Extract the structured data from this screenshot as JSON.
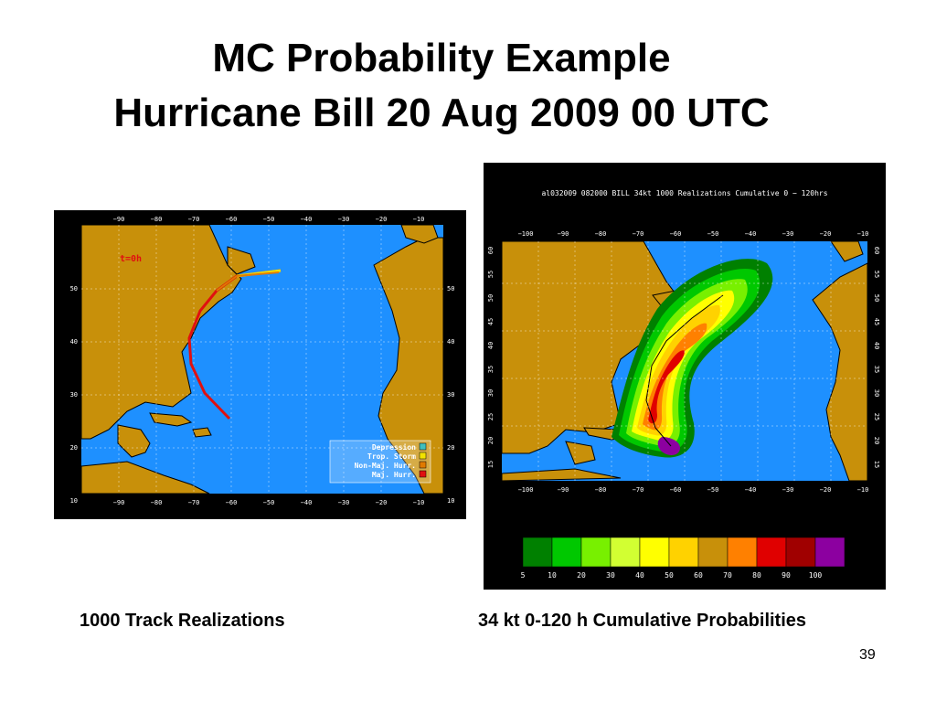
{
  "slide": {
    "title_line1": "MC Probability Example",
    "title_line2": "Hurricane Bill 20 Aug 2009 00 UTC",
    "caption_left": "1000 Track Realizations",
    "caption_right": "34 kt 0-120 h Cumulative Probabilities",
    "slide_number": "39"
  },
  "left_map": {
    "time_label": "t=0h",
    "lon_ticks": [
      "−90",
      "−80",
      "−70",
      "−60",
      "−50",
      "−40",
      "−30",
      "−20",
      "−10"
    ],
    "lat_ticks": [
      "50",
      "40",
      "30",
      "20",
      "10"
    ],
    "legend": [
      {
        "label": "Depression",
        "color": "#3fbfbf"
      },
      {
        "label": "Trop. Storm",
        "color": "#f2e200"
      },
      {
        "label": "Non-Maj. Hurr.",
        "color": "#e07a00"
      },
      {
        "label": "Maj. Hurr.",
        "color": "#e01010"
      }
    ],
    "colors": {
      "ocean": "#1e90ff",
      "land": "#c8900a",
      "border": "#ffffff"
    }
  },
  "right_map": {
    "header": "al032009 082000 BILL 34kt 1000 Realizations Cumulative 0 − 120hrs",
    "lon_ticks": [
      "−100",
      "−90",
      "−80",
      "−70",
      "−60",
      "−50",
      "−40",
      "−30",
      "−20",
      "−10"
    ],
    "lat_ticks": [
      "60",
      "55",
      "50",
      "45",
      "40",
      "35",
      "30",
      "25",
      "20",
      "15"
    ],
    "colorbar": {
      "labels": [
        "5",
        "10",
        "20",
        "30",
        "40",
        "50",
        "60",
        "70",
        "80",
        "90",
        "100"
      ],
      "colors": [
        "#008000",
        "#00c800",
        "#78f000",
        "#d2ff32",
        "#ffff00",
        "#ffd200",
        "#c8900a",
        "#ff8000",
        "#e00000",
        "#a00000",
        "#8c00a0"
      ]
    },
    "colors": {
      "ocean": "#1e90ff",
      "land": "#c8900a"
    }
  }
}
